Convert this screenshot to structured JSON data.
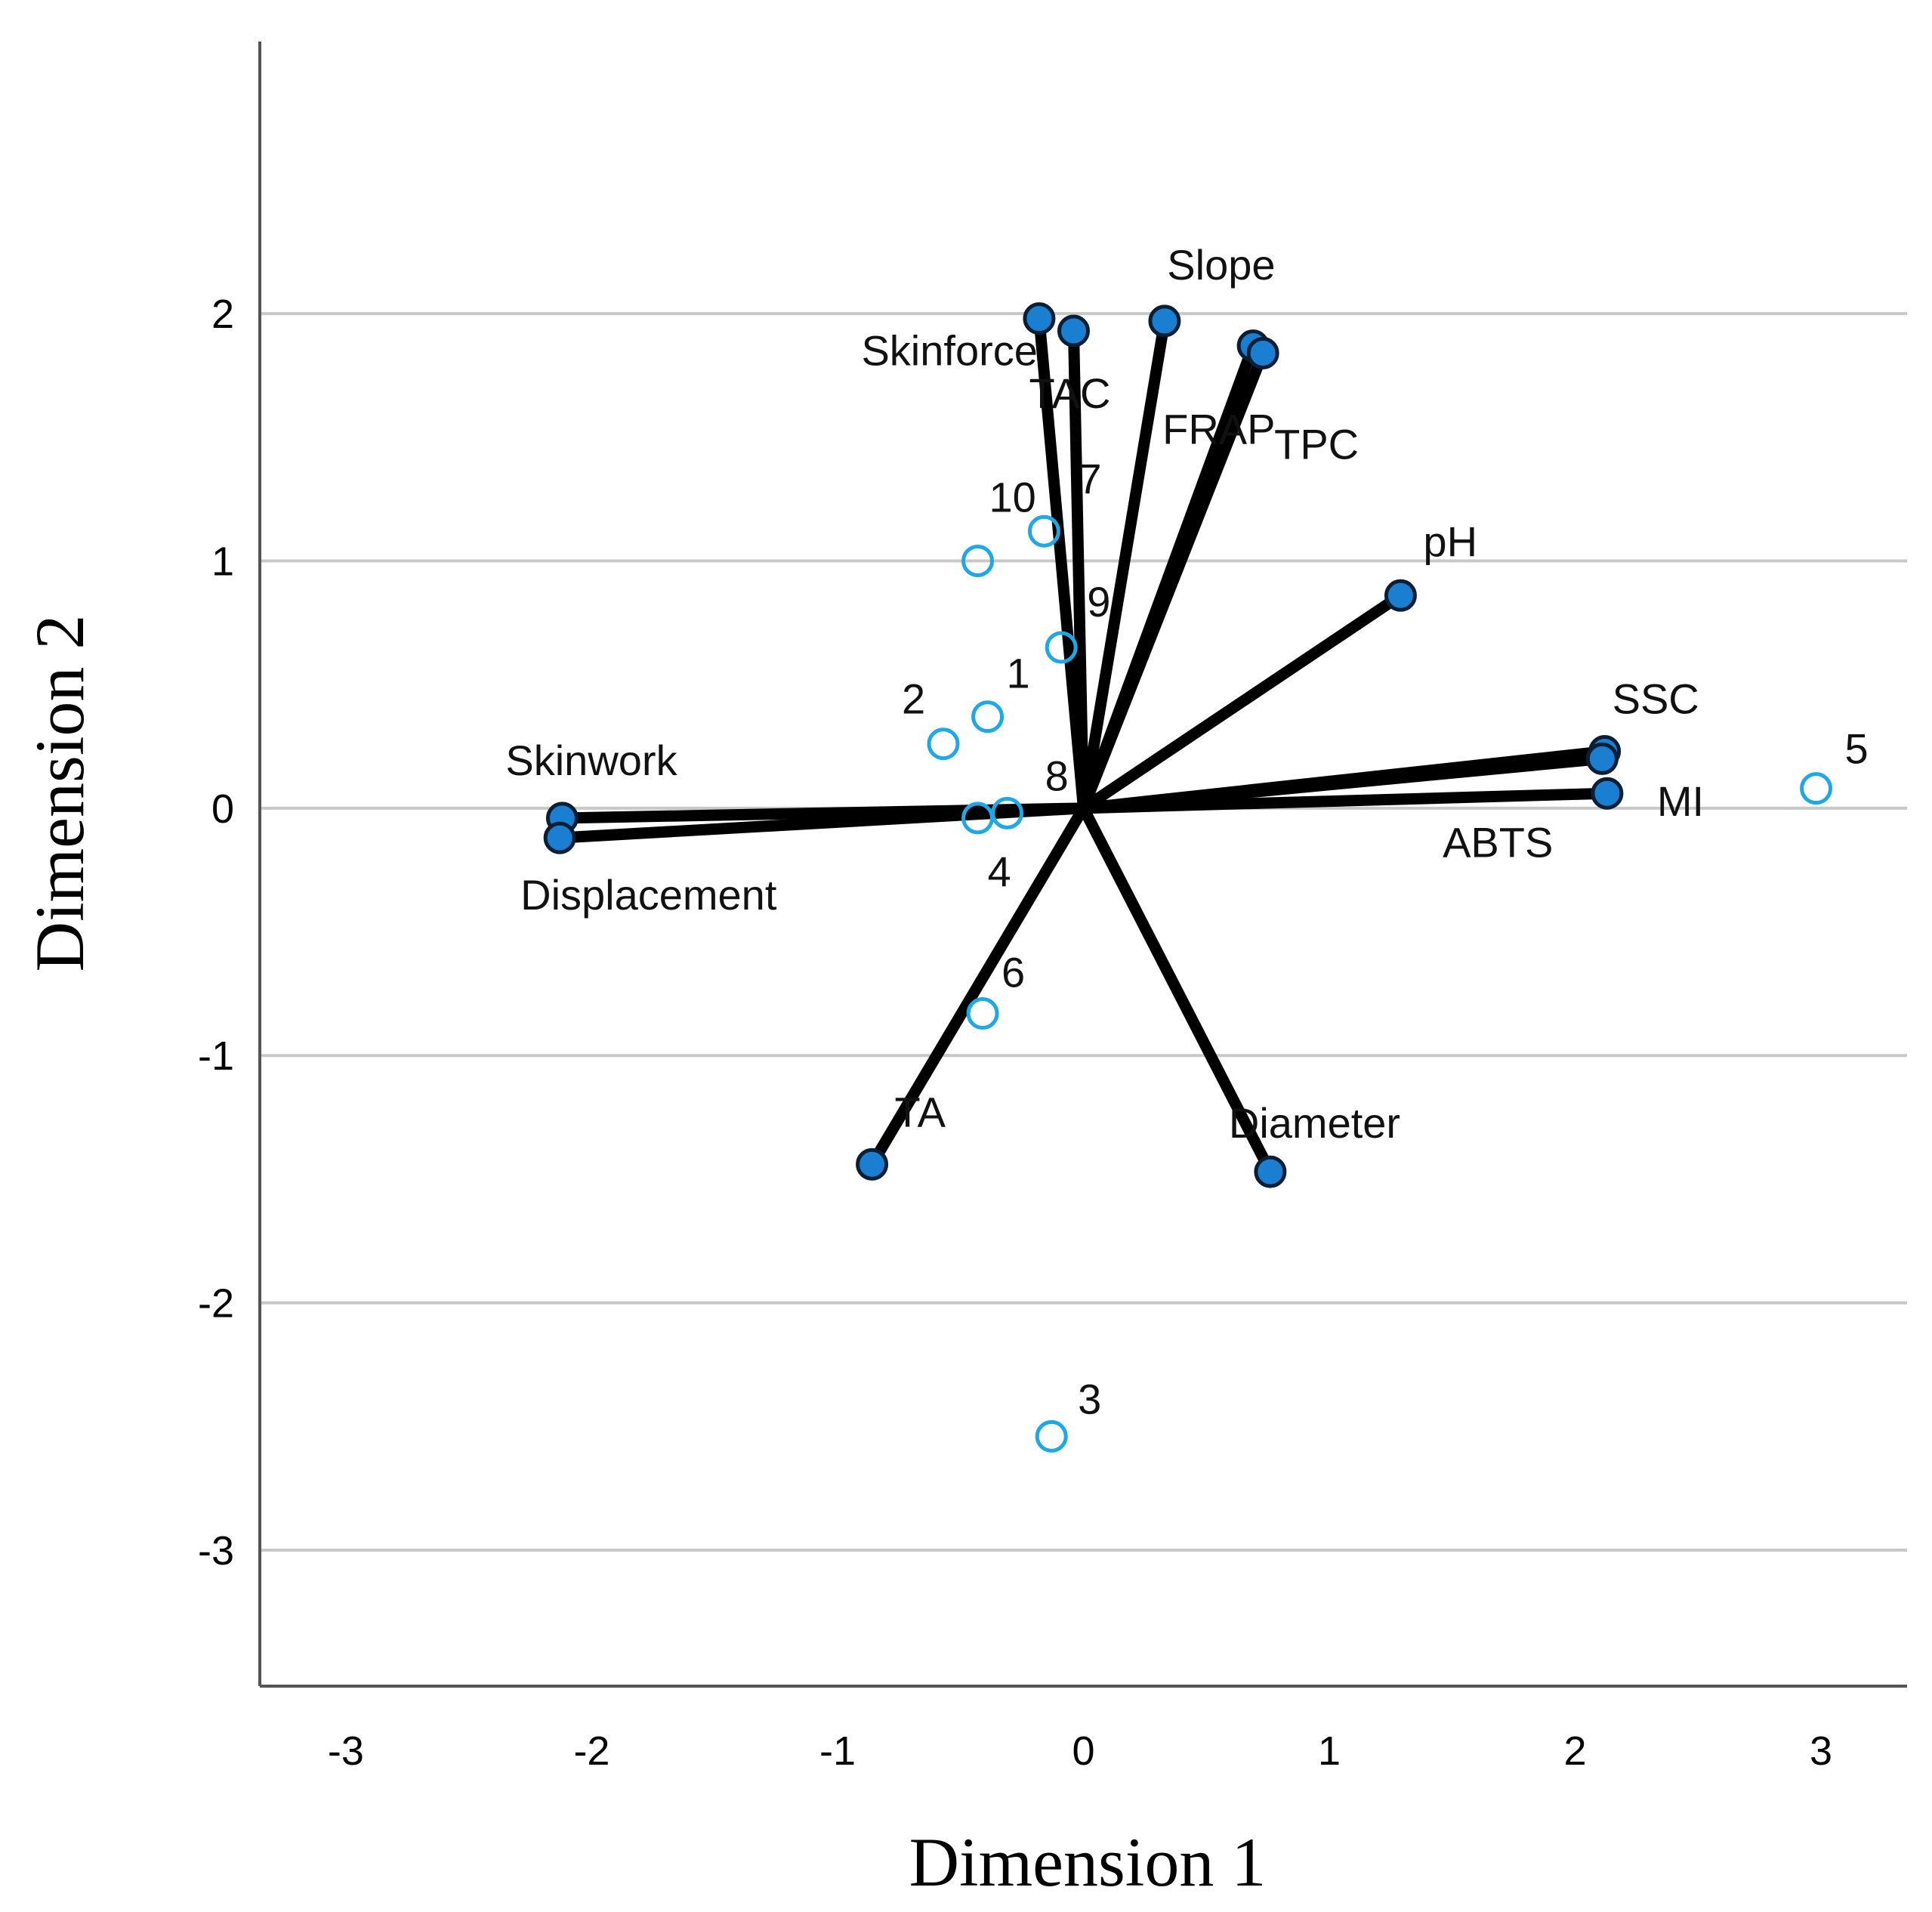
{
  "chart_data": {
    "type": "scatter",
    "subtype": "biplot",
    "title": "",
    "xlabel": "Dimension 1",
    "ylabel": "Dimension 2",
    "xlim": [
      -3.35,
      3.35
    ],
    "ylim": [
      -3.55,
      3.1
    ],
    "xticks": [
      -3,
      -2,
      -1,
      0,
      1,
      2,
      3
    ],
    "yticks": [
      -3,
      -2,
      -1,
      0,
      1,
      2
    ],
    "xtick_labels": [
      "-3",
      "-2",
      "-1",
      "0",
      "1",
      "2",
      "3"
    ],
    "ytick_labels": [
      "-3",
      "-2",
      "-1",
      "0",
      "1",
      "2"
    ],
    "grid": "horizontal",
    "vectors": [
      {
        "name": "Skinforce",
        "x": -0.18,
        "y": 1.98
      },
      {
        "name": "TAC",
        "x": -0.04,
        "y": 1.93
      },
      {
        "name": "Slope",
        "x": 0.33,
        "y": 1.97
      },
      {
        "name": "FRAP",
        "x": 0.69,
        "y": 1.87
      },
      {
        "name": "TPC",
        "x": 0.73,
        "y": 1.84
      },
      {
        "name": "pH",
        "x": 1.29,
        "y": 0.86
      },
      {
        "name": "SSC",
        "x": 2.12,
        "y": 0.23
      },
      {
        "name": "MI",
        "x": 2.13,
        "y": 0.06
      },
      {
        "name": "ABTS",
        "x": 2.11,
        "y": 0.2
      },
      {
        "name": "Skinwork",
        "x": -2.12,
        "y": -0.04
      },
      {
        "name": "Displacement",
        "x": -2.13,
        "y": -0.12
      },
      {
        "name": "TA",
        "x": -0.86,
        "y": -1.44
      },
      {
        "name": "Diameter",
        "x": 0.76,
        "y": -1.47
      }
    ],
    "objects": [
      {
        "name": "1",
        "x": -0.39,
        "y": 0.37
      },
      {
        "name": "2",
        "x": -0.57,
        "y": 0.26
      },
      {
        "name": "3",
        "x": -0.13,
        "y": -2.54
      },
      {
        "name": "4",
        "x": -0.43,
        "y": -0.04
      },
      {
        "name": "5",
        "x": 2.98,
        "y": 0.08
      },
      {
        "name": "6",
        "x": -0.41,
        "y": -0.83
      },
      {
        "name": "7",
        "x": -0.16,
        "y": 1.12
      },
      {
        "name": "8",
        "x": -0.31,
        "y": -0.02
      },
      {
        "name": "9",
        "x": -0.09,
        "y": 0.65
      },
      {
        "name": "10",
        "x": -0.43,
        "y": 1.0
      }
    ],
    "colors": {
      "vector_line": "#000000",
      "vector_point": "#1a7fd1",
      "object_point": "#1ea8e6",
      "grid": "#c8c8c8",
      "axis": "#555555"
    }
  }
}
